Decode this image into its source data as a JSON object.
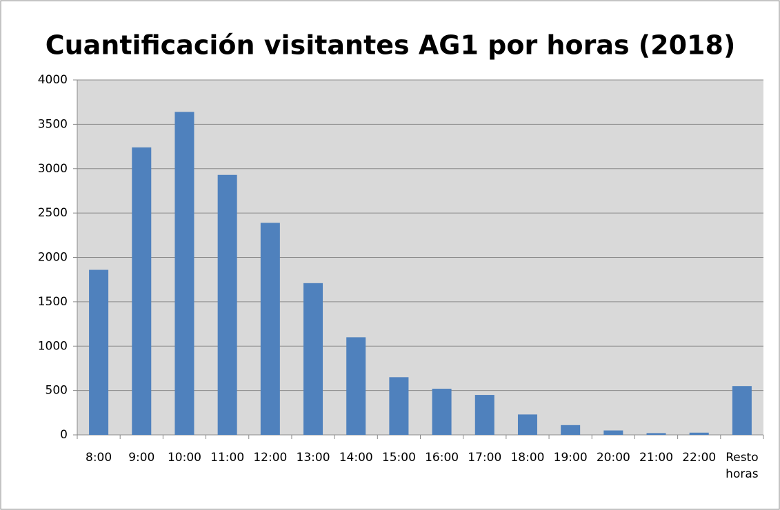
{
  "chart_data": {
    "type": "bar",
    "title": "Cuantificación visitantes AG1 por horas (2018)",
    "categories": [
      "8:00",
      "9:00",
      "10:00",
      "11:00",
      "12:00",
      "13:00",
      "14:00",
      "15:00",
      "16:00",
      "17:00",
      "18:00",
      "19:00",
      "20:00",
      "21:00",
      "22:00",
      "Resto horas"
    ],
    "values": [
      1860,
      3240,
      3640,
      2930,
      2390,
      1710,
      1100,
      650,
      520,
      450,
      230,
      110,
      50,
      20,
      25,
      550
    ],
    "color": "#4f81bd",
    "ylim": [
      0,
      4000
    ],
    "yticks": [
      0,
      500,
      1000,
      1500,
      2000,
      2500,
      3000,
      3500,
      4000
    ],
    "grid": true
  }
}
